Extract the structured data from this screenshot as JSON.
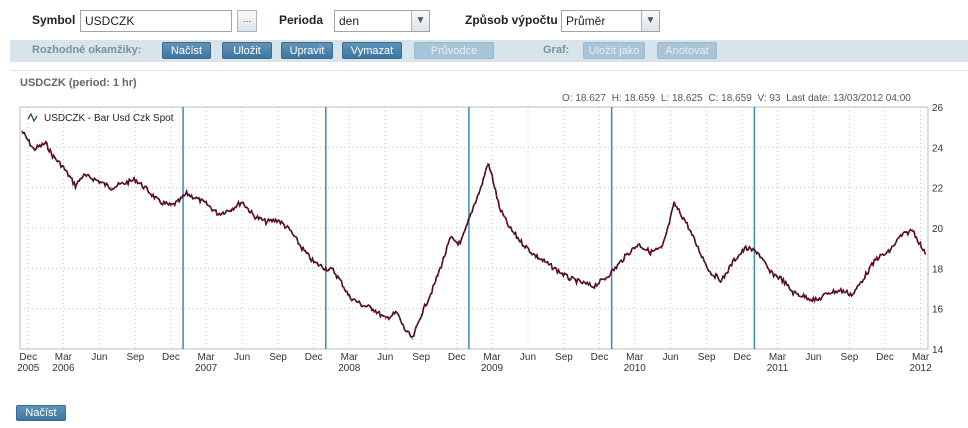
{
  "toolbar": {
    "symbol_label": "Symbol",
    "symbol_value": "USDCZK",
    "browse_label": "...",
    "period_label": "Perioda",
    "period_value": "den",
    "method_label": "Způsob výpočtu",
    "method_value": "Průměr"
  },
  "actionbar": {
    "decisions_label": "Rozhodné okamžiky:",
    "load": "Načíst",
    "save": "Uložit",
    "edit": "Upravit",
    "delete": "Vymazat",
    "guide": "Průvodce",
    "graph_label": "Graf:",
    "save_as": "Uložit jako",
    "annotate": "Anotovat"
  },
  "chart_panel": {
    "title": "USDCZK  (period: 1 hr)",
    "ohlc": {
      "open": "O: 18.627",
      "high": "H: 18.659",
      "low": "L: 18.625",
      "close": "C: 18.659",
      "volume": "V: 93",
      "last_date": "Last date: 13/03/2012 04:00"
    }
  },
  "bottom": {
    "load_button": "Načíst"
  },
  "colors": {
    "series_up": "#b0002a",
    "series_down": "#111111",
    "decision_lines": "#3b8bb0",
    "grid": "#c8c8c8",
    "accent_button": "#4a7fa8"
  },
  "chart_data": {
    "type": "line",
    "title": "USDCZK  (period: 1 hr)",
    "legend": {
      "label": "USDCZK - Bar Usd Czk Spot",
      "icon": "line-icon",
      "position": "top-left"
    },
    "xlabel": "",
    "ylabel": "",
    "ylim": [
      14,
      26
    ],
    "y_ticks": [
      14,
      16,
      18,
      20,
      22,
      24,
      26
    ],
    "y_axis_side": "right",
    "x_ticks": [
      {
        "month": "Dec",
        "year": "2005",
        "date": "2005-12-01"
      },
      {
        "month": "Mar",
        "year": "2006",
        "date": "2006-03-01"
      },
      {
        "month": "Jun",
        "year": "",
        "date": "2006-06-01"
      },
      {
        "month": "Sep",
        "year": "",
        "date": "2006-09-01"
      },
      {
        "month": "Dec",
        "year": "",
        "date": "2006-12-01"
      },
      {
        "month": "Mar",
        "year": "2007",
        "date": "2007-03-01"
      },
      {
        "month": "Jun",
        "year": "",
        "date": "2007-06-01"
      },
      {
        "month": "Sep",
        "year": "",
        "date": "2007-09-01"
      },
      {
        "month": "Dec",
        "year": "",
        "date": "2007-12-01"
      },
      {
        "month": "Mar",
        "year": "2008",
        "date": "2008-03-01"
      },
      {
        "month": "Jun",
        "year": "",
        "date": "2008-06-01"
      },
      {
        "month": "Sep",
        "year": "",
        "date": "2008-09-01"
      },
      {
        "month": "Dec",
        "year": "",
        "date": "2008-12-01"
      },
      {
        "month": "Mar",
        "year": "2009",
        "date": "2009-03-01"
      },
      {
        "month": "Jun",
        "year": "",
        "date": "2009-06-01"
      },
      {
        "month": "Sep",
        "year": "",
        "date": "2009-09-01"
      },
      {
        "month": "Dec",
        "year": "",
        "date": "2009-12-01"
      },
      {
        "month": "Mar",
        "year": "2010",
        "date": "2010-03-01"
      },
      {
        "month": "Jun",
        "year": "",
        "date": "2010-06-01"
      },
      {
        "month": "Sep",
        "year": "",
        "date": "2010-09-01"
      },
      {
        "month": "Dec",
        "year": "",
        "date": "2010-12-01"
      },
      {
        "month": "Mar",
        "year": "2011",
        "date": "2011-03-01"
      },
      {
        "month": "Jun",
        "year": "",
        "date": "2011-06-01"
      },
      {
        "month": "Sep",
        "year": "",
        "date": "2011-09-01"
      },
      {
        "month": "Dec",
        "year": "",
        "date": "2011-12-01"
      },
      {
        "month": "Mar",
        "year": "2012",
        "date": "2012-03-01"
      }
    ],
    "decision_dates": [
      "2007-01-01",
      "2008-01-01",
      "2009-01-01",
      "2010-01-01",
      "2011-01-01"
    ],
    "grid": true,
    "series": [
      {
        "name": "USDCZK - Bar Usd Czk Spot",
        "x": [
          "2005-11-15",
          "2005-12-15",
          "2006-01-15",
          "2006-02-01",
          "2006-03-01",
          "2006-04-01",
          "2006-04-20",
          "2006-05-10",
          "2006-06-01",
          "2006-07-01",
          "2006-08-01",
          "2006-09-01",
          "2006-10-01",
          "2006-11-01",
          "2006-12-01",
          "2006-12-20",
          "2007-01-10",
          "2007-02-01",
          "2007-03-01",
          "2007-04-01",
          "2007-05-01",
          "2007-06-01",
          "2007-07-01",
          "2007-08-01",
          "2007-09-01",
          "2007-10-01",
          "2007-11-01",
          "2007-12-01",
          "2008-01-01",
          "2008-01-20",
          "2008-02-10",
          "2008-03-01",
          "2008-04-01",
          "2008-05-01",
          "2008-06-01",
          "2008-07-01",
          "2008-07-20",
          "2008-08-10",
          "2008-09-01",
          "2008-10-01",
          "2008-10-25",
          "2008-11-15",
          "2008-12-10",
          "2008-12-25",
          "2009-01-15",
          "2009-02-01",
          "2009-02-18",
          "2009-03-01",
          "2009-03-20",
          "2009-04-15",
          "2009-05-15",
          "2009-06-15",
          "2009-07-15",
          "2009-08-15",
          "2009-09-15",
          "2009-10-15",
          "2009-11-15",
          "2009-12-15",
          "2010-01-10",
          "2010-02-10",
          "2010-03-10",
          "2010-04-10",
          "2010-05-10",
          "2010-05-25",
          "2010-06-10",
          "2010-07-10",
          "2010-08-10",
          "2010-09-10",
          "2010-10-10",
          "2010-11-10",
          "2010-12-10",
          "2011-01-10",
          "2011-02-10",
          "2011-03-10",
          "2011-04-10",
          "2011-05-10",
          "2011-06-10",
          "2011-07-10",
          "2011-08-10",
          "2011-09-10",
          "2011-10-10",
          "2011-11-10",
          "2011-12-10",
          "2012-01-10",
          "2012-02-10",
          "2012-03-13"
        ],
        "values": [
          24.8,
          23.9,
          24.2,
          23.6,
          23.0,
          22.1,
          22.6,
          22.5,
          22.3,
          22.0,
          22.2,
          22.4,
          21.9,
          21.3,
          21.1,
          21.3,
          21.7,
          21.5,
          21.2,
          20.7,
          20.9,
          21.3,
          20.6,
          20.3,
          20.4,
          19.9,
          19.0,
          18.3,
          18.0,
          17.9,
          17.3,
          16.6,
          16.2,
          16.0,
          15.5,
          15.8,
          15.0,
          14.5,
          15.7,
          17.0,
          18.3,
          19.5,
          19.2,
          20.0,
          21.2,
          22.0,
          23.2,
          22.6,
          21.0,
          20.0,
          19.3,
          18.7,
          18.3,
          17.9,
          17.5,
          17.3,
          17.1,
          17.5,
          18.0,
          18.7,
          19.2,
          18.8,
          19.0,
          20.0,
          21.2,
          20.3,
          19.0,
          17.8,
          17.4,
          18.4,
          19.0,
          18.8,
          17.8,
          17.5,
          16.8,
          16.6,
          16.4,
          16.8,
          16.9,
          16.7,
          17.6,
          18.5,
          18.8,
          19.6,
          19.9,
          18.7
        ]
      }
    ]
  }
}
